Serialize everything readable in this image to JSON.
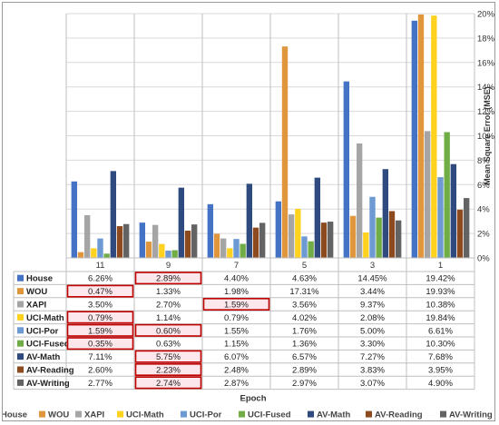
{
  "chart_data": {
    "type": "bar",
    "xlabel": "Epoch",
    "ylabel": "Mean Square Error (MSE)",
    "ylim": [
      0,
      20
    ],
    "y_ticks": [
      "0%",
      "2%",
      "4%",
      "6%",
      "8%",
      "10%",
      "12%",
      "14%",
      "16%",
      "18%",
      "20%"
    ],
    "y_axis_position": "right",
    "grid": true,
    "legend_position": "bottom",
    "categories": [
      "11",
      "9",
      "7",
      "5",
      "3",
      "1"
    ],
    "series": [
      {
        "name": "House",
        "color": "#4472c4",
        "values": [
          6.26,
          2.89,
          4.4,
          4.63,
          14.45,
          19.42
        ],
        "labels": [
          "6.26%",
          "2.89%",
          "4.40%",
          "4.63%",
          "14.45%",
          "19.42%"
        ]
      },
      {
        "name": "WOU",
        "color": "#e0963c",
        "values": [
          0.47,
          1.33,
          1.98,
          17.31,
          3.44,
          19.93
        ],
        "labels": [
          "0.47%",
          "1.33%",
          "1.98%",
          "17.31%",
          "3.44%",
          "19.93%"
        ]
      },
      {
        "name": "XAPI",
        "color": "#a5a5a5",
        "values": [
          3.5,
          2.7,
          1.59,
          3.56,
          9.37,
          10.38
        ],
        "labels": [
          "3.50%",
          "2.70%",
          "1.59%",
          "3.56%",
          "9.37%",
          "10.38%"
        ]
      },
      {
        "name": "UCI-Math",
        "color": "#ffd21f",
        "values": [
          0.79,
          1.14,
          0.79,
          4.02,
          2.08,
          19.84
        ],
        "labels": [
          "0.79%",
          "1.14%",
          "0.79%",
          "4.02%",
          "2.08%",
          "19.84%"
        ]
      },
      {
        "name": "UCI-Por",
        "color": "#6d9ad3",
        "values": [
          1.59,
          0.6,
          1.55,
          1.76,
          5.0,
          6.61
        ],
        "labels": [
          "1.59%",
          "0.60%",
          "1.55%",
          "1.76%",
          "5.00%",
          "6.61%"
        ]
      },
      {
        "name": "UCI-Fused",
        "color": "#70ad47",
        "values": [
          0.35,
          0.63,
          1.15,
          1.36,
          3.3,
          10.3
        ],
        "labels": [
          "0.35%",
          "0.63%",
          "1.15%",
          "1.36%",
          "3.30%",
          "10.30%"
        ]
      },
      {
        "name": "AV-Math",
        "color": "#2f4a7e",
        "values": [
          7.11,
          5.75,
          6.07,
          6.57,
          7.27,
          7.68
        ],
        "labels": [
          "7.11%",
          "5.75%",
          "6.07%",
          "6.57%",
          "7.27%",
          "7.68%"
        ]
      },
      {
        "name": "AV-Reading",
        "color": "#8c4a1e",
        "values": [
          2.6,
          2.23,
          2.48,
          2.89,
          3.83,
          3.95
        ],
        "labels": [
          "2.60%",
          "2.23%",
          "2.48%",
          "2.89%",
          "3.83%",
          "3.95%"
        ]
      },
      {
        "name": "AV-Writing",
        "color": "#636363",
        "values": [
          2.77,
          2.74,
          2.87,
          2.97,
          3.07,
          4.9
        ],
        "labels": [
          "2.77%",
          "2.74%",
          "2.87%",
          "2.97%",
          "3.07%",
          "4.90%"
        ]
      }
    ],
    "highlighted_cells": [
      {
        "series": "House",
        "category": "9"
      },
      {
        "series": "WOU",
        "category": "11"
      },
      {
        "series": "XAPI",
        "category": "7"
      },
      {
        "series": "UCI-Math",
        "category": "11"
      },
      {
        "series": "UCI-Por",
        "category": "11"
      },
      {
        "series": "UCI-Por",
        "category": "9"
      },
      {
        "series": "UCI-Fused",
        "category": "11"
      },
      {
        "series": "AV-Math",
        "category": "9"
      },
      {
        "series": "AV-Reading",
        "category": "9"
      },
      {
        "series": "AV-Writing",
        "category": "9"
      }
    ],
    "highlight_color": "#c00000"
  }
}
